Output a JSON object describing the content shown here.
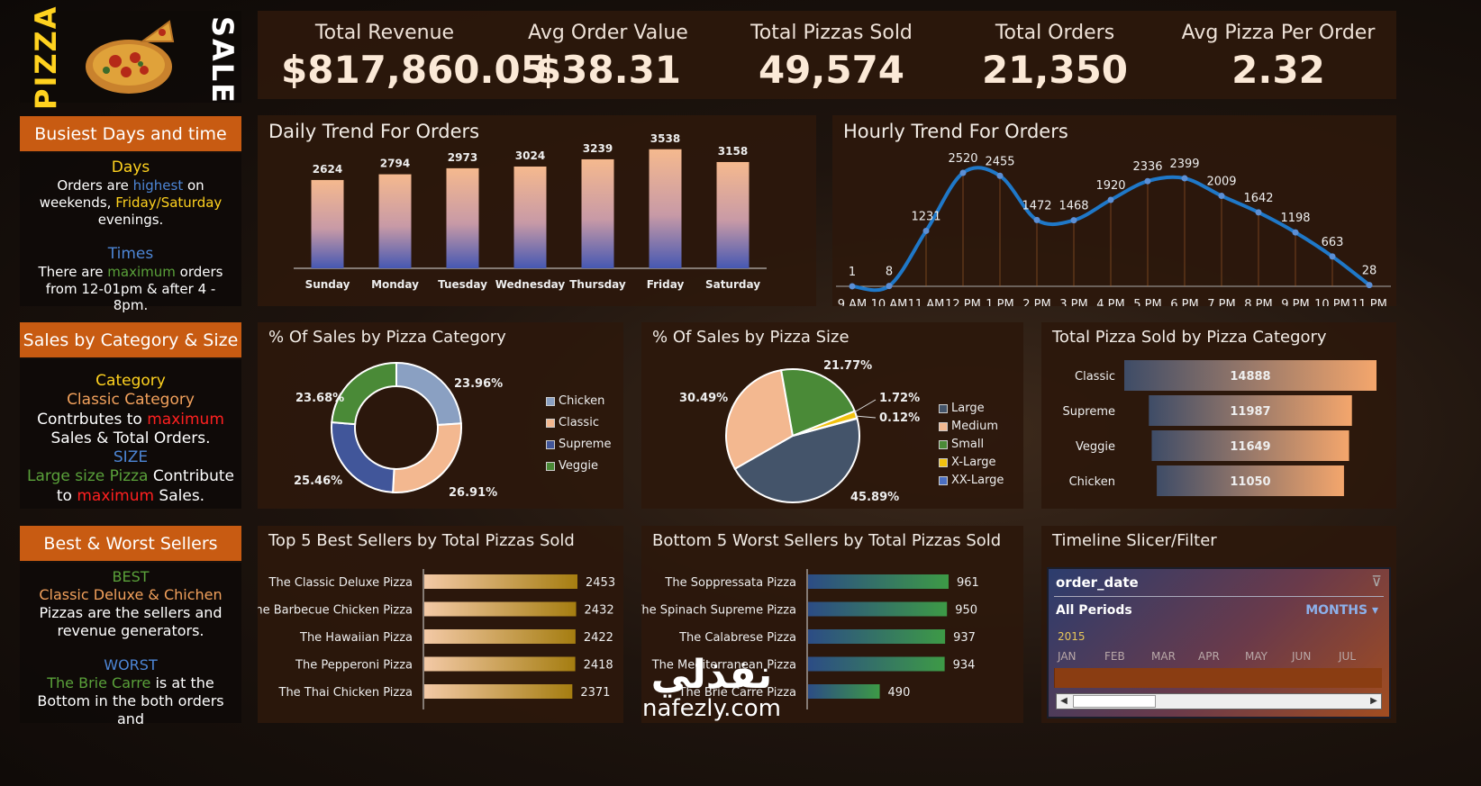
{
  "brand": {
    "left": "PIZZA",
    "right": "SALE"
  },
  "kpis": [
    {
      "label": "Total Revenue",
      "value": "$817,860.05"
    },
    {
      "label": "Avg Order Value",
      "value": "$38.31"
    },
    {
      "label": "Total Pizzas Sold",
      "value": "49,574"
    },
    {
      "label": "Total Orders",
      "value": "21,350"
    },
    {
      "label": "Avg Pizza Per Order",
      "value": "2.32"
    }
  ],
  "left": {
    "busy_title": "Busiest Days and time",
    "days_head": "Days",
    "days_t1": "Orders are ",
    "days_h1": "highest",
    "days_t2": " on weekends, ",
    "days_h2": "Friday/Saturday",
    "days_t3": " evenings.",
    "times_head": "Times",
    "times_t1": "There are ",
    "times_h1": "maximum",
    "times_t2": " orders from 12-01pm & after 4 - 8pm.",
    "cat_title": "Sales by Category & Size",
    "cat_head": "Category",
    "cat_sub": "Classic Category",
    "cat_t1": "Contrbutes to ",
    "cat_h1": "maximum",
    "cat_t2": " Sales & Total Orders.",
    "size_head": "SIZE",
    "size_h1": "Large size Pizza",
    "size_t1": " Contribute to ",
    "size_h2": "maximum",
    "size_t2": " Sales.",
    "bw_title": "Best & Worst Sellers",
    "best_head": "BEST",
    "best_sub": "Classic Deluxe & Chichen",
    "best_t": "Pizzas are the sellers and revenue generators.",
    "worst_head": "WORST",
    "worst_h1": "The Brie Carre",
    "worst_t": " is at the Bottom in the both orders and"
  },
  "chart_data": [
    {
      "id": "daily",
      "type": "bar",
      "title": "Daily Trend For Orders",
      "categories": [
        "Sunday",
        "Monday",
        "Tuesday",
        "Wednesday",
        "Thursday",
        "Friday",
        "Saturday"
      ],
      "values": [
        2624,
        2794,
        2973,
        3024,
        3239,
        3538,
        3158
      ],
      "ylim": [
        0,
        4000
      ]
    },
    {
      "id": "hourly",
      "type": "line",
      "title": "Hourly Trend For Orders",
      "categories": [
        "9 AM",
        "10 AM",
        "11 AM",
        "12 PM",
        "1 PM",
        "2 PM",
        "3 PM",
        "4 PM",
        "5 PM",
        "6 PM",
        "7 PM",
        "8 PM",
        "9 PM",
        "10 PM",
        "11 PM"
      ],
      "values": [
        1,
        8,
        1231,
        2520,
        2455,
        1472,
        1468,
        1920,
        2336,
        2399,
        2009,
        1642,
        1198,
        663,
        28
      ],
      "ylim": [
        0,
        2700
      ]
    },
    {
      "id": "category",
      "type": "pie",
      "title": "% Of Sales by Pizza Category",
      "labels": [
        "Chicken",
        "Classic",
        "Supreme",
        "Veggie"
      ],
      "values": [
        23.96,
        26.91,
        25.46,
        23.68
      ],
      "value_labels": [
        "23.96%",
        "26.91%",
        "25.46%",
        "23.68%"
      ],
      "colors": [
        "#8aa0c2",
        "#f3b890",
        "#41569a",
        "#4a8a37"
      ]
    },
    {
      "id": "size",
      "type": "pie",
      "title": "% Of Sales by Pizza Size",
      "labels": [
        "Large",
        "Medium",
        "Small",
        "X-Large",
        "XX-Large"
      ],
      "values": [
        45.89,
        30.49,
        21.77,
        1.72,
        0.12
      ],
      "value_labels": [
        "45.89%",
        "30.49%",
        "21.77%",
        "1.72%",
        "0.12%"
      ],
      "colors": [
        "#44546a",
        "#f3b890",
        "#4a8a37",
        "#f2c20f",
        "#4b6fc2"
      ]
    },
    {
      "id": "catsold",
      "type": "bar",
      "title": "Total Pizza Sold by Pizza Category",
      "categories": [
        "Classic",
        "Supreme",
        "Veggie",
        "Chicken"
      ],
      "values": [
        14888,
        11987,
        11649,
        11050
      ]
    },
    {
      "id": "best",
      "type": "bar",
      "title": "Top 5 Best Sellers by Total Pizzas Sold",
      "categories": [
        "The Classic Deluxe Pizza",
        "The Barbecue Chicken Pizza",
        "The Hawaiian Pizza",
        "The Pepperoni Pizza",
        "The Thai Chicken Pizza"
      ],
      "values": [
        2453,
        2432,
        2422,
        2418,
        2371
      ]
    },
    {
      "id": "worst",
      "type": "bar",
      "title": "Bottom 5 Worst Sellers by Total Pizzas Sold",
      "categories": [
        "The Soppressata Pizza",
        "The Spinach Supreme Pizza",
        "The Calabrese Pizza",
        "The Mediterranean Pizza",
        "The Brie Carre Pizza"
      ],
      "values": [
        961,
        950,
        937,
        934,
        490
      ]
    }
  ],
  "slicer": {
    "title": "Timeline Slicer/Filter",
    "field": "order_date",
    "period": "All Periods",
    "unit": "MONTHS",
    "year": "2015",
    "months": [
      "JAN",
      "FEB",
      "MAR",
      "APR",
      "MAY",
      "JUN",
      "JUL"
    ]
  },
  "watermark": {
    "arabic": "نفذلي",
    "site": "nafezly.com"
  },
  "colors": {
    "accent": "#c85b12",
    "panel": "#2c180c",
    "line": "#1f78c8"
  }
}
